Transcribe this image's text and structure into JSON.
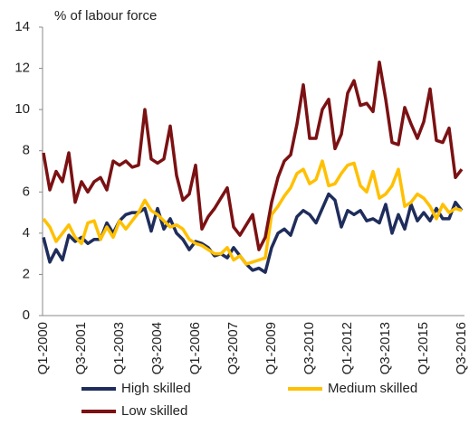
{
  "chart_data": {
    "type": "line",
    "y_label": "% of labour force",
    "categories": [
      "Q1-2000",
      null,
      null,
      null,
      null,
      null,
      "Q3-2001",
      null,
      null,
      null,
      null,
      null,
      "Q1-2003",
      null,
      null,
      null,
      null,
      null,
      "Q3-2004",
      null,
      null,
      null,
      null,
      null,
      "Q1-2006",
      null,
      null,
      null,
      null,
      null,
      "Q3-2007",
      null,
      null,
      null,
      null,
      null,
      "Q1-2009",
      null,
      null,
      null,
      null,
      null,
      "Q3-2010",
      null,
      null,
      null,
      null,
      null,
      "Q1-2012",
      null,
      null,
      null,
      null,
      null,
      "Q3-2013",
      null,
      null,
      null,
      null,
      null,
      "Q1-2015",
      null,
      null,
      null,
      null,
      null,
      "Q3-2016"
    ],
    "series": [
      {
        "name": "High skilled",
        "color": "#1f2d5c",
        "values": [
          3.8,
          2.6,
          3.2,
          2.7,
          3.9,
          3.6,
          3.8,
          3.5,
          3.7,
          3.7,
          4.5,
          4.0,
          4.6,
          4.9,
          5.0,
          5.0,
          5.2,
          4.1,
          5.2,
          4.2,
          4.7,
          4.0,
          3.7,
          3.2,
          3.6,
          3.5,
          3.3,
          2.9,
          3.0,
          2.8,
          3.3,
          2.9,
          2.5,
          2.2,
          2.3,
          2.1,
          3.3,
          4.0,
          4.2,
          3.9,
          4.8,
          5.1,
          4.9,
          4.5,
          5.2,
          5.9,
          5.6,
          4.3,
          5.1,
          4.9,
          5.1,
          4.6,
          4.7,
          4.5,
          5.4,
          4.0,
          4.9,
          4.2,
          5.4,
          4.6,
          5.0,
          4.6,
          5.2,
          4.7,
          4.7,
          5.5,
          5.1
        ]
      },
      {
        "name": "Medium skilled",
        "color": "#ffc000",
        "values": [
          4.7,
          4.3,
          3.6,
          4.0,
          4.4,
          3.8,
          3.5,
          4.5,
          4.6,
          3.7,
          4.3,
          3.8,
          4.6,
          4.2,
          4.6,
          5.0,
          5.6,
          5.1,
          4.9,
          4.6,
          4.3,
          4.4,
          4.2,
          3.7,
          3.5,
          3.4,
          3.2,
          3.0,
          3.0,
          3.3,
          2.7,
          2.9,
          2.5,
          2.6,
          2.7,
          2.8,
          4.9,
          5.3,
          5.8,
          6.2,
          6.9,
          7.1,
          6.4,
          6.6,
          7.5,
          6.3,
          6.4,
          6.9,
          7.3,
          7.4,
          6.3,
          6.0,
          7.0,
          5.7,
          5.9,
          6.3,
          7.1,
          5.3,
          5.5,
          5.9,
          5.7,
          5.3,
          4.7,
          5.4,
          5.0,
          5.2,
          5.1
        ]
      },
      {
        "name": "Low skilled",
        "color": "#7b1113",
        "values": [
          7.9,
          6.1,
          7.0,
          6.5,
          7.9,
          5.5,
          6.5,
          6.0,
          6.5,
          6.7,
          6.1,
          7.5,
          7.3,
          7.5,
          7.2,
          7.3,
          10.0,
          7.6,
          7.4,
          7.6,
          9.2,
          6.8,
          5.6,
          5.9,
          7.3,
          4.2,
          4.8,
          5.2,
          5.7,
          6.2,
          4.3,
          3.9,
          4.4,
          4.9,
          3.2,
          3.8,
          5.5,
          6.7,
          7.5,
          7.8,
          9.3,
          11.2,
          8.6,
          8.6,
          10.0,
          10.5,
          8.1,
          8.8,
          10.8,
          11.4,
          10.2,
          10.3,
          9.9,
          12.3,
          10.5,
          8.4,
          8.3,
          10.1,
          9.3,
          8.6,
          9.4,
          11.0,
          8.5,
          8.4,
          9.1,
          6.7,
          7.1
        ]
      }
    ],
    "ylim": [
      0,
      14
    ],
    "yticks": [
      0,
      2,
      4,
      6,
      8,
      10,
      12,
      14
    ],
    "grid": false
  }
}
